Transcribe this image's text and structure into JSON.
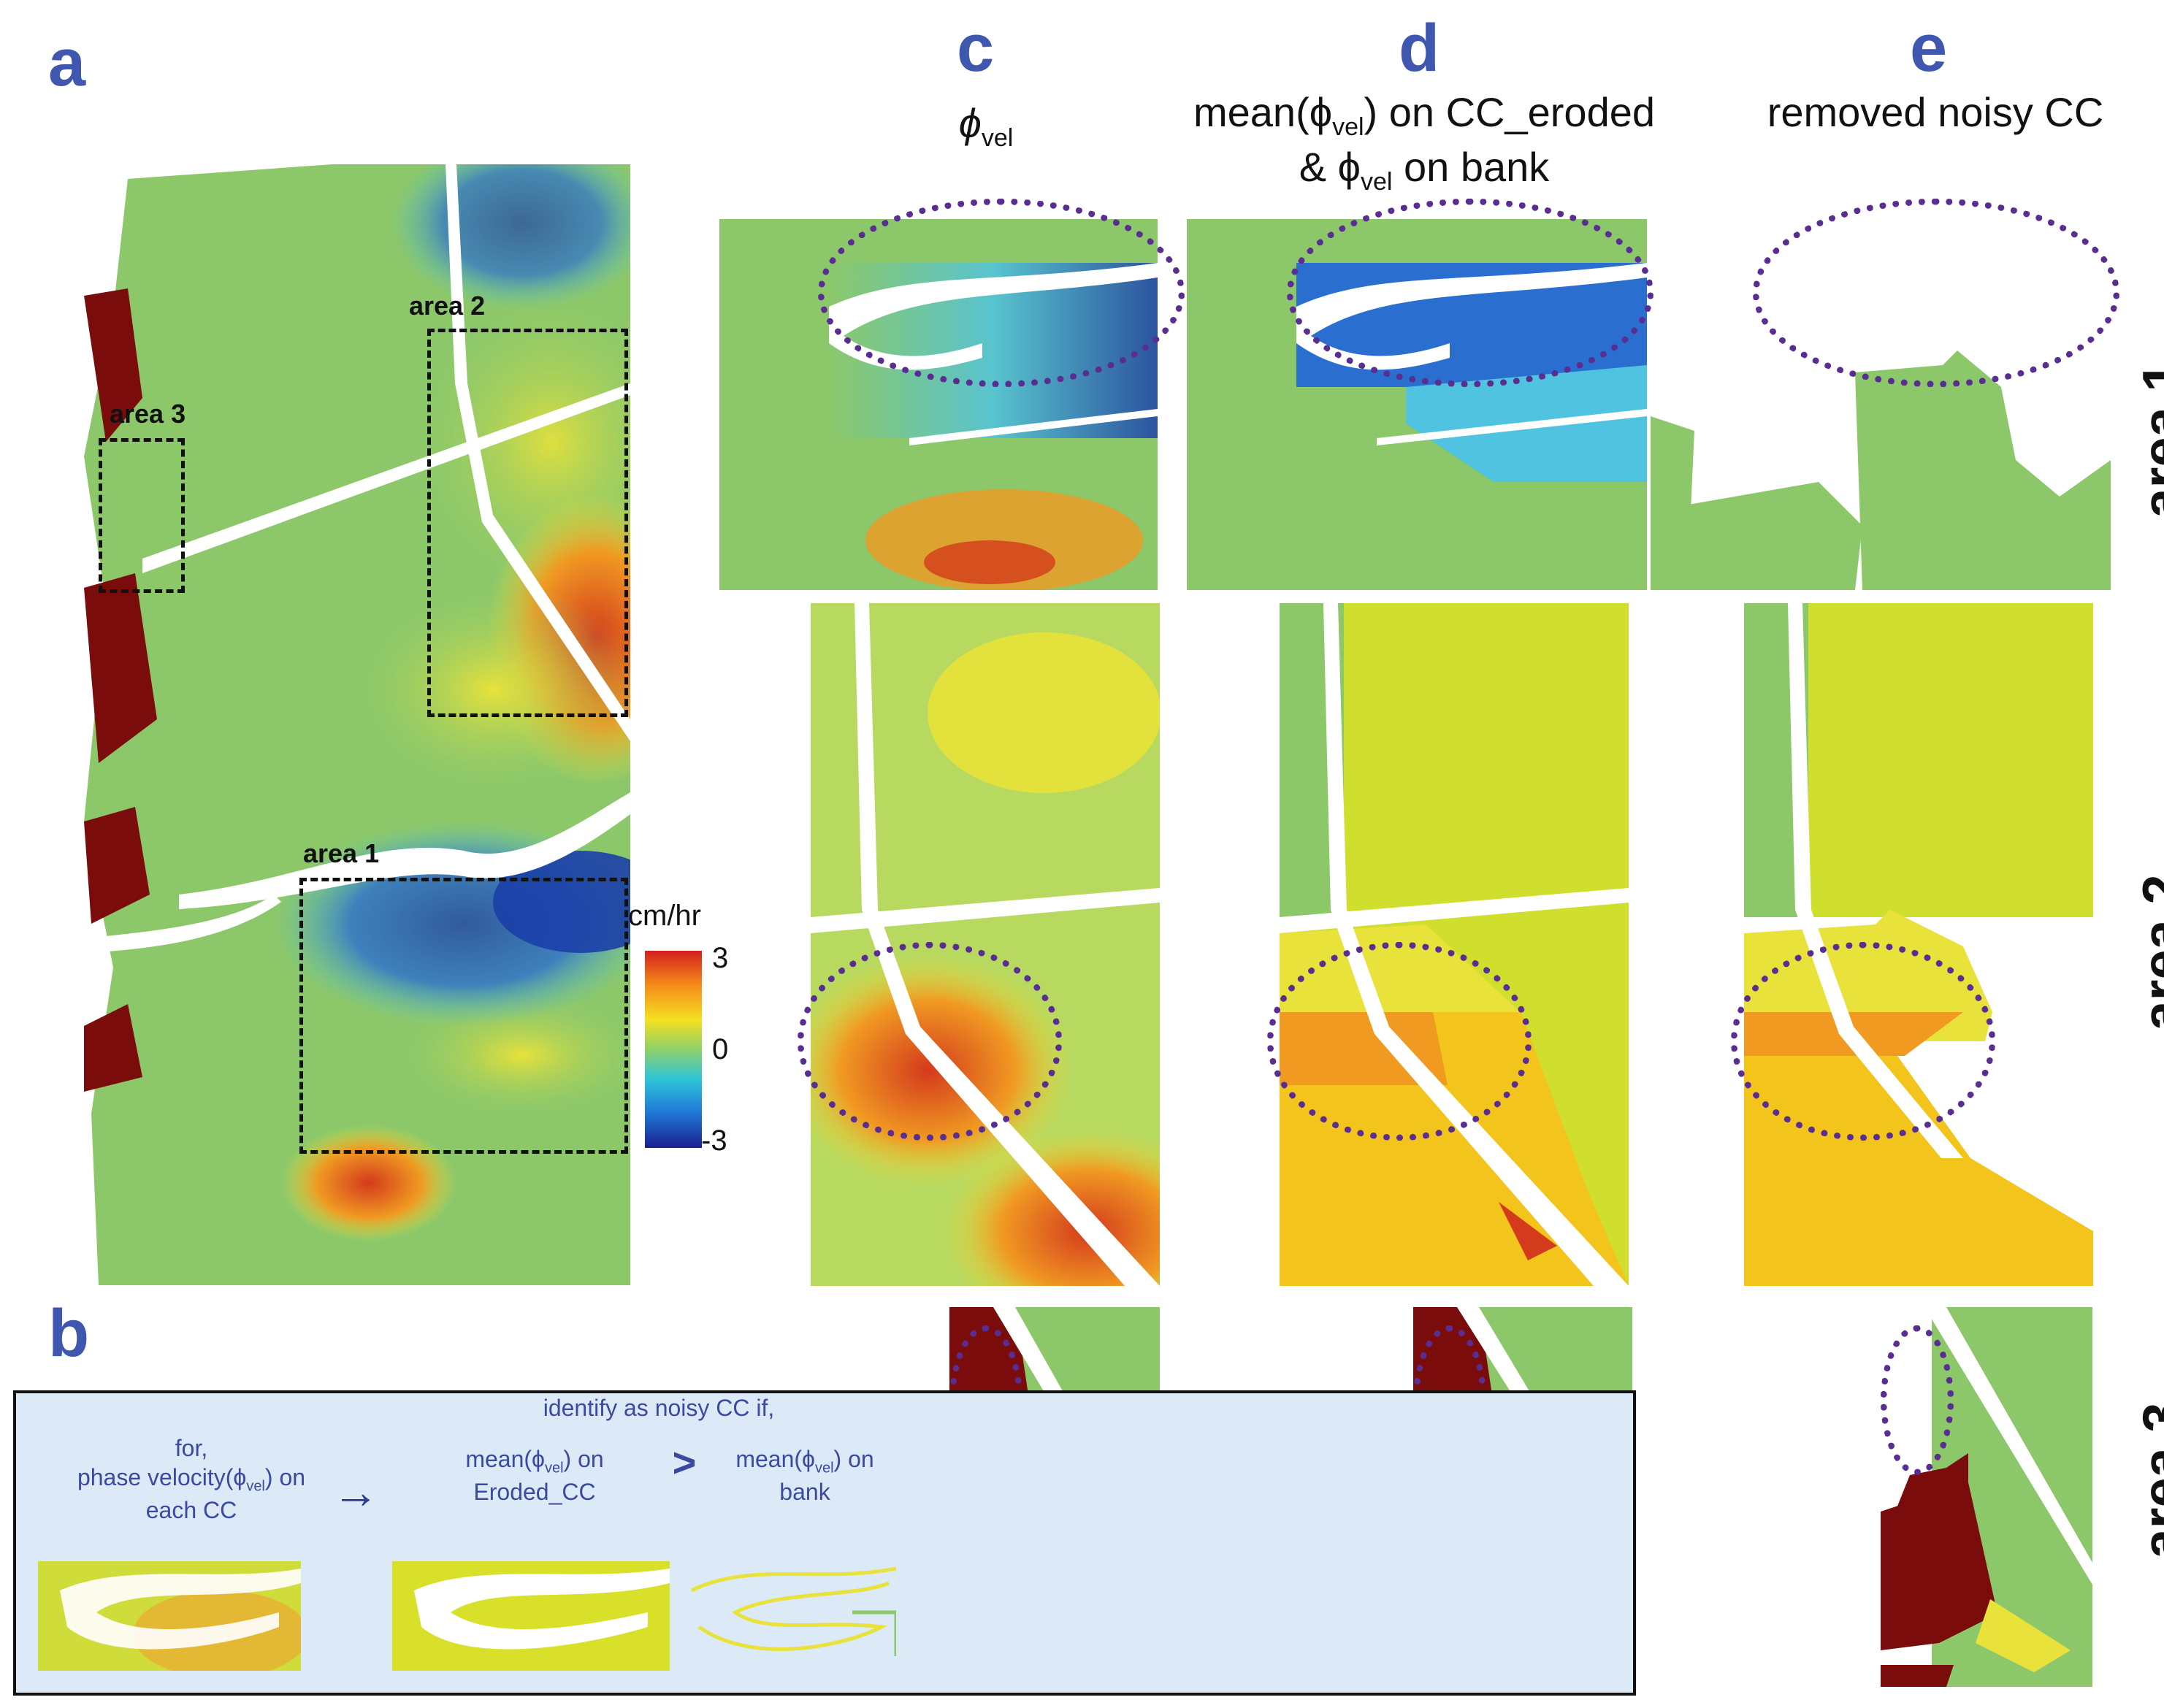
{
  "panels": {
    "a": "a",
    "b": "b",
    "c": "c",
    "d": "d",
    "e": "e"
  },
  "column_titles": {
    "c": "ϕvel",
    "c_main": "ϕ",
    "c_sub": "vel",
    "d_line1_pre": "mean(ϕ",
    "d_line1_sub": "vel",
    "d_line1_post": ")  on CC_eroded",
    "d_line2_pre": "& ϕ",
    "d_line2_sub": "vel",
    "d_line2_post": " on bank",
    "e": "removed noisy CC"
  },
  "areas": {
    "area1": "area 1",
    "area2": "area 2",
    "area3": "area 3"
  },
  "colorbar": {
    "unit": "cm/hr",
    "ticks": [
      "3",
      "0",
      "-3"
    ],
    "colors": [
      "#1a1f8f",
      "#1f78d8",
      "#2ec6d8",
      "#8fd06a",
      "#f4e01f",
      "#f5901a",
      "#d41f1f"
    ]
  },
  "panel_b": {
    "step1_line1": "for,",
    "step1_line2_pre": "phase velocity(ϕ",
    "step1_line2_sub": "vel",
    "step1_line2_post": ")  on",
    "step1_line3": "each CC",
    "arrow": "→",
    "header": "identify as noisy CC if,",
    "step2_pre": "mean(ϕ",
    "step2_sub": "vel",
    "step2_post": ")  on",
    "step2_line2": "Eroded_CC",
    "comparator": ">",
    "step3_pre": "mean(ϕ",
    "step3_sub": "vel",
    "step3_post": ")  on",
    "step3_line2": "bank"
  },
  "map_colors": {
    "background": "#8cc86a",
    "blue": "#2a6fd0",
    "deep_blue": "#1b3fa8",
    "cyan": "#4fc3e0",
    "yellow": "#e8e23a",
    "orange": "#f09a22",
    "red": "#d43a1c",
    "dark_red": "#7a0c0c",
    "lime": "#cfe03a",
    "water": "#ffffff"
  }
}
